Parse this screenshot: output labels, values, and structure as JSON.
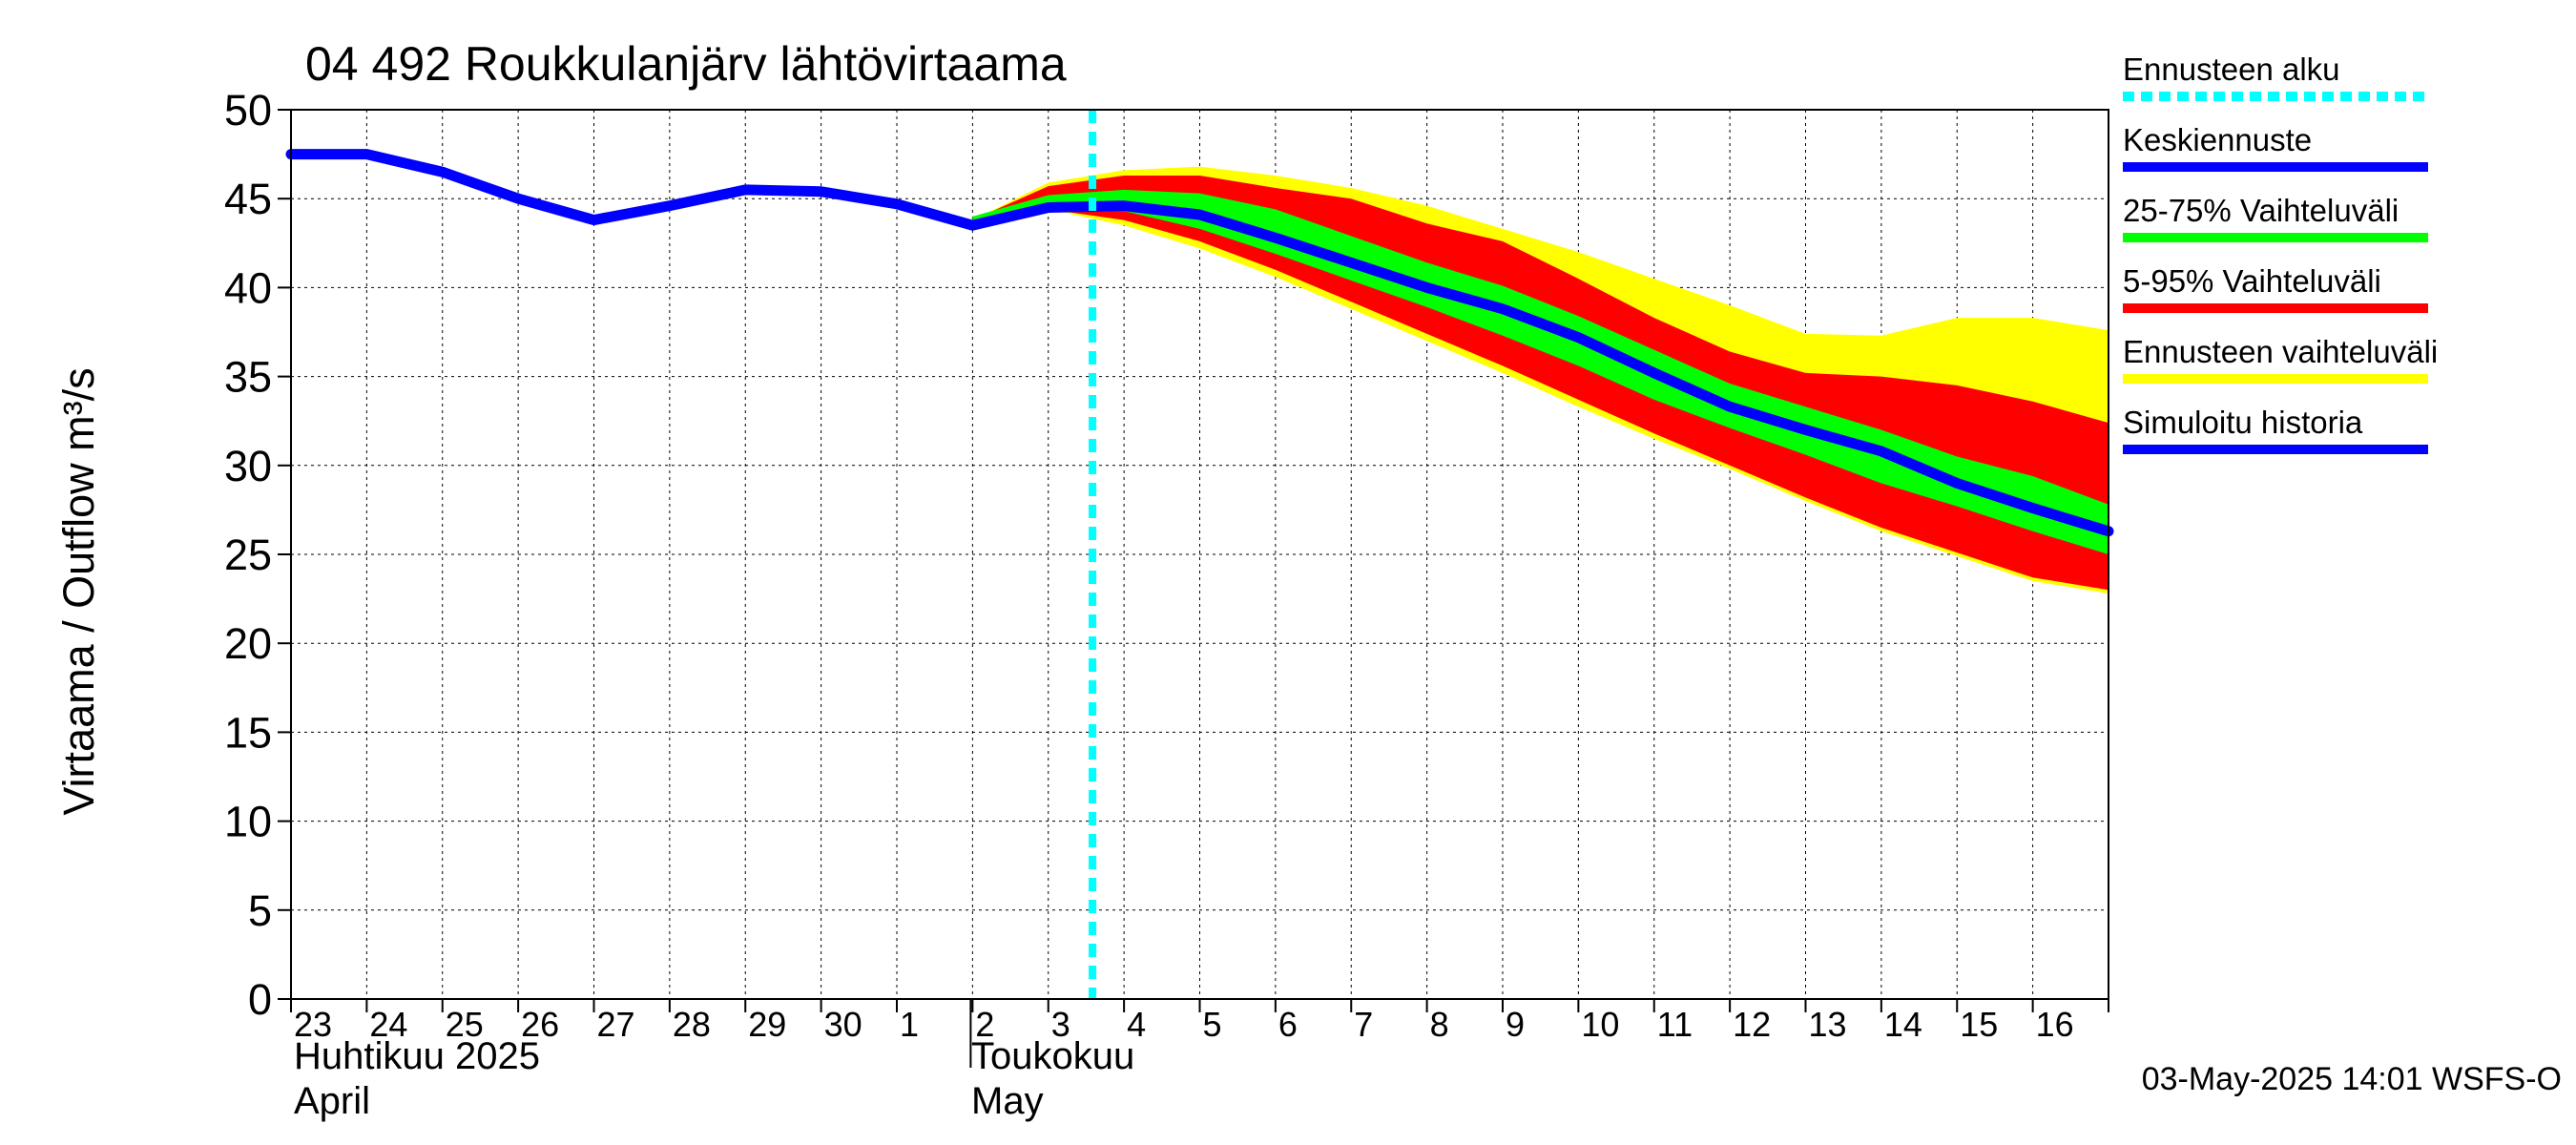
{
  "chart_data": {
    "type": "area",
    "title": "04 492 Roukkulanjärv lähtövirtaama",
    "ylabel": "Virtaama / Outflow    m³/s",
    "ylim": [
      0,
      50
    ],
    "yticks": [
      0,
      5,
      10,
      15,
      20,
      25,
      30,
      35,
      40,
      45,
      50
    ],
    "grid": true,
    "legend_position": "right",
    "x_day_labels": [
      "23",
      "24",
      "25",
      "26",
      "27",
      "28",
      "29",
      "30",
      "1",
      "2",
      "3",
      "4",
      "5",
      "6",
      "7",
      "8",
      "9",
      "10",
      "11",
      "12",
      "13",
      "14",
      "15",
      "16"
    ],
    "x_range": [
      "2025-04-23",
      "2025-05-16T24:00"
    ],
    "month_labels": [
      {
        "fi": "Huhtikuu  2025",
        "en": "April",
        "start": "2025-04-23"
      },
      {
        "fi": "Toukokuu",
        "en": "May",
        "start": "2025-05-02"
      }
    ],
    "forecast_start": "2025-05-03T14:00",
    "series": [
      {
        "name": "Simuloitu historia",
        "color": "#0000ff",
        "x": [
          "2025-04-23",
          "2025-04-24",
          "2025-04-25",
          "2025-04-26",
          "2025-04-27",
          "2025-04-28",
          "2025-04-29",
          "2025-04-30",
          "2025-05-01",
          "2025-05-02",
          "2025-05-03"
        ],
        "y": [
          47.5,
          47.5,
          46.5,
          45.0,
          43.8,
          44.6,
          45.5,
          45.4,
          44.7,
          43.5,
          44.5
        ]
      },
      {
        "name": "Keskiennuste",
        "color": "#0000ff",
        "x": [
          "2025-05-03",
          "2025-05-04",
          "2025-05-05",
          "2025-05-06",
          "2025-05-07",
          "2025-05-08",
          "2025-05-09",
          "2025-05-10",
          "2025-05-11",
          "2025-05-12",
          "2025-05-13",
          "2025-05-14",
          "2025-05-15",
          "2025-05-16",
          "2025-05-16T24:00"
        ],
        "y": [
          44.5,
          44.6,
          44.1,
          42.8,
          41.4,
          40.0,
          38.8,
          37.2,
          35.2,
          33.3,
          32.0,
          30.8,
          29.0,
          27.6,
          26.3
        ]
      }
    ],
    "bands": [
      {
        "name": "Ennusteen vaihteluväli",
        "color": "#ffff00",
        "x": [
          "2025-05-02",
          "2025-05-03",
          "2025-05-04",
          "2025-05-05",
          "2025-05-06",
          "2025-05-07",
          "2025-05-08",
          "2025-05-09",
          "2025-05-10",
          "2025-05-11",
          "2025-05-12",
          "2025-05-13",
          "2025-05-14",
          "2025-05-15",
          "2025-05-16",
          "2025-05-16T24:00"
        ],
        "upper": [
          43.8,
          45.9,
          46.6,
          46.8,
          46.3,
          45.6,
          44.6,
          43.3,
          42.0,
          40.5,
          39.0,
          37.4,
          37.3,
          38.3,
          38.3,
          37.6
        ],
        "lower": [
          43.5,
          44.4,
          43.5,
          42.2,
          40.6,
          38.8,
          37.0,
          35.2,
          33.3,
          31.5,
          29.8,
          28.0,
          26.3,
          24.9,
          23.5,
          22.8
        ]
      },
      {
        "name": "5-95% Vaihteluväli",
        "color": "#ff0000",
        "x": [
          "2025-05-02",
          "2025-05-03",
          "2025-05-04",
          "2025-05-05",
          "2025-05-06",
          "2025-05-07",
          "2025-05-08",
          "2025-05-09",
          "2025-05-10",
          "2025-05-11",
          "2025-05-12",
          "2025-05-13",
          "2025-05-14",
          "2025-05-15",
          "2025-05-16",
          "2025-05-16T24:00"
        ],
        "upper": [
          43.8,
          45.7,
          46.3,
          46.3,
          45.6,
          45.0,
          43.6,
          42.6,
          40.5,
          38.3,
          36.4,
          35.2,
          35.0,
          34.5,
          33.6,
          32.4
        ],
        "lower": [
          43.5,
          44.4,
          43.8,
          42.6,
          41.0,
          39.2,
          37.4,
          35.6,
          33.7,
          31.8,
          30.0,
          28.2,
          26.5,
          25.1,
          23.7,
          23.0
        ]
      },
      {
        "name": "25-75% Vaihteluväli",
        "color": "#00ff00",
        "x": [
          "2025-05-02",
          "2025-05-03",
          "2025-05-04",
          "2025-05-05",
          "2025-05-06",
          "2025-05-07",
          "2025-05-08",
          "2025-05-09",
          "2025-05-10",
          "2025-05-11",
          "2025-05-12",
          "2025-05-13",
          "2025-05-14",
          "2025-05-15",
          "2025-05-16",
          "2025-05-16T24:00"
        ],
        "upper": [
          44.0,
          45.2,
          45.5,
          45.3,
          44.4,
          42.9,
          41.4,
          40.1,
          38.4,
          36.5,
          34.6,
          33.3,
          32.0,
          30.5,
          29.4,
          27.8
        ],
        "lower": [
          43.5,
          44.4,
          44.3,
          43.3,
          41.9,
          40.4,
          38.9,
          37.3,
          35.6,
          33.7,
          32.1,
          30.6,
          29.0,
          27.7,
          26.3,
          25.0
        ]
      }
    ]
  },
  "legend": {
    "items": [
      {
        "label": "Ennusteen alku",
        "color": "#00ffff",
        "style": "dashed"
      },
      {
        "label": "Keskiennuste",
        "color": "#0000ff",
        "style": "solid"
      },
      {
        "label": "25-75% Vaihteluväli",
        "color": "#00ff00",
        "style": "solid"
      },
      {
        "label": "5-95% Vaihteluväli",
        "color": "#ff0000",
        "style": "solid"
      },
      {
        "label": "Ennusteen vaihteluväli",
        "color": "#ffff00",
        "style": "solid"
      },
      {
        "label": "Simuloitu historia",
        "color": "#0000ff",
        "style": "solid"
      }
    ]
  },
  "footer": {
    "timestamp": "03-May-2025 14:01 WSFS-O"
  }
}
